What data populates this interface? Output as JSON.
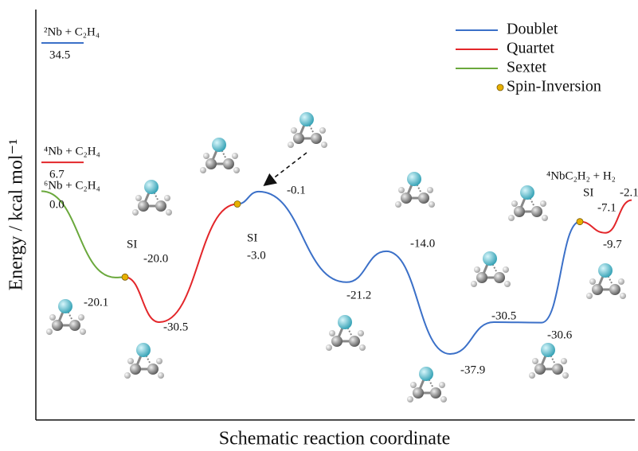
{
  "chart_data": {
    "type": "energy-profile",
    "y_label": "Energy / kcal mol⁻¹",
    "x_label": "Schematic reaction coordinate",
    "series": [
      {
        "name": "Doublet",
        "color": "#3b70c8",
        "values": [
          null,
          null,
          null,
          null,
          -3.0,
          -0.1,
          -21.2,
          -14.0,
          -37.9,
          -30.5,
          -30.6,
          -7.1,
          null,
          null
        ],
        "value_labels": [
          null,
          null,
          null,
          null,
          null,
          "-0.1",
          "-21.2",
          "-14.0",
          "-37.9",
          "-30.5",
          "-30.6",
          "-7.1",
          null,
          null
        ]
      },
      {
        "name": "Quartet",
        "color": "#e3262a",
        "values": [
          null,
          null,
          -20.0,
          -30.5,
          -3.0,
          null,
          null,
          null,
          null,
          null,
          null,
          -7.1,
          -9.7,
          -2.1
        ],
        "value_labels": [
          null,
          null,
          "-20.0",
          "-30.5",
          "-3.0",
          null,
          null,
          null,
          null,
          null,
          null,
          null,
          "-9.7",
          "-2.1"
        ]
      },
      {
        "name": "Sextet",
        "color": "#6aa83c",
        "values": [
          0.0,
          -20.1,
          -20.0,
          null,
          null,
          null,
          null,
          null,
          null,
          null,
          null,
          null,
          null,
          null
        ],
        "value_labels": [
          "0.0",
          "-20.1",
          null,
          null,
          null,
          null,
          null,
          null,
          null,
          null,
          null,
          null,
          null,
          null
        ]
      },
      {
        "name": "Spin-Inversion",
        "color": "#e7b000",
        "values": [
          null,
          null,
          -20.0,
          null,
          -3.0,
          null,
          null,
          null,
          null,
          null,
          null,
          -7.1,
          null,
          null
        ],
        "value_labels": [
          null,
          null,
          "SI",
          null,
          "SI",
          null,
          null,
          null,
          null,
          null,
          null,
          "SI",
          null,
          null
        ]
      }
    ],
    "levels": [
      {
        "label": "²Nb + C₂H₄",
        "value": 34.5,
        "value_label": "34.5",
        "color": "#3b70c8"
      },
      {
        "label": "⁴Nb + C₂H₄",
        "value": 6.7,
        "value_label": "6.7",
        "color": "#e3262a"
      }
    ],
    "start_label": "⁶Nb + C₂H₄",
    "end_label": "⁴NbC₂H₂ + H₂"
  }
}
